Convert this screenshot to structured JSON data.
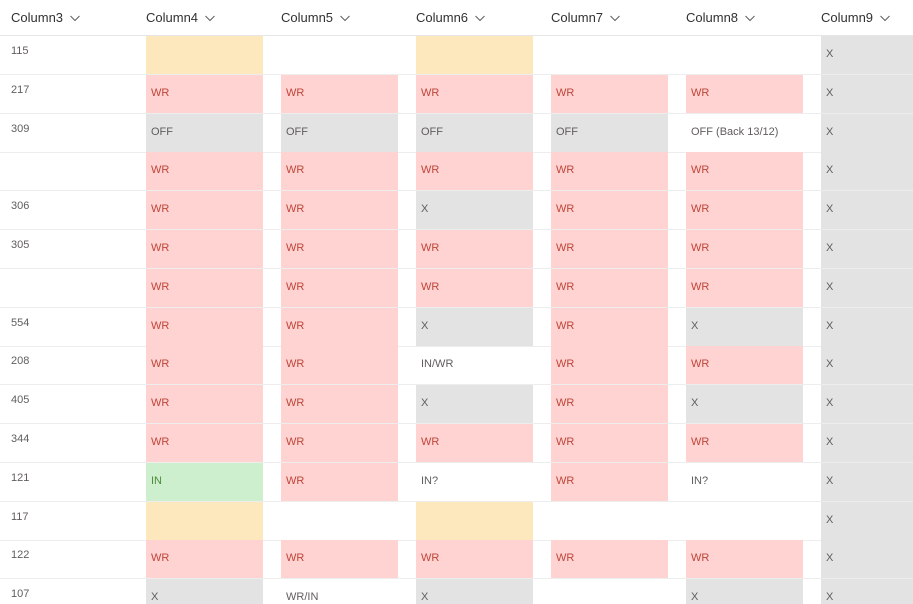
{
  "headers": [
    "Column3",
    "Column4",
    "Column5",
    "Column6",
    "Column7",
    "Column8",
    "Column9"
  ],
  "header_icon": "chevron-down-icon",
  "colors": {
    "WR": "#fed3d1",
    "OFF": "#e3e3e3",
    "X": "#e3e3e3",
    "IN": "#cdefcd",
    "YEL": "#fde7bd"
  },
  "rows": [
    {
      "c3": "115",
      "cells": [
        {
          "t": "",
          "s": "YEL"
        },
        {
          "t": "",
          "s": "plain"
        },
        {
          "t": "",
          "s": "YEL"
        },
        {
          "t": "",
          "s": "plain"
        },
        {
          "t": "",
          "s": "plain"
        },
        {
          "t": "X",
          "s": "X"
        }
      ]
    },
    {
      "c3": "217",
      "cells": [
        {
          "t": "WR",
          "s": "WR"
        },
        {
          "t": "WR",
          "s": "WR"
        },
        {
          "t": "WR",
          "s": "WR"
        },
        {
          "t": "WR",
          "s": "WR"
        },
        {
          "t": "WR",
          "s": "WR"
        },
        {
          "t": "X",
          "s": "X"
        }
      ]
    },
    {
      "c3": "309",
      "cells": [
        {
          "t": "OFF",
          "s": "OFF"
        },
        {
          "t": "OFF",
          "s": "OFF"
        },
        {
          "t": "OFF",
          "s": "OFF"
        },
        {
          "t": "OFF",
          "s": "OFF"
        },
        {
          "t": "OFF (Back 13/12)",
          "s": "plain"
        },
        {
          "t": "X",
          "s": "X"
        }
      ]
    },
    {
      "c3": "",
      "cells": [
        {
          "t": "WR",
          "s": "WR"
        },
        {
          "t": "WR",
          "s": "WR"
        },
        {
          "t": "WR",
          "s": "WR"
        },
        {
          "t": "WR",
          "s": "WR"
        },
        {
          "t": "WR",
          "s": "WR"
        },
        {
          "t": "X",
          "s": "X"
        }
      ]
    },
    {
      "c3": "306",
      "cells": [
        {
          "t": "WR",
          "s": "WR"
        },
        {
          "t": "WR",
          "s": "WR"
        },
        {
          "t": "X",
          "s": "X"
        },
        {
          "t": "WR",
          "s": "WR"
        },
        {
          "t": "WR",
          "s": "WR"
        },
        {
          "t": "X",
          "s": "X"
        }
      ]
    },
    {
      "c3": "305",
      "cells": [
        {
          "t": "WR",
          "s": "WR"
        },
        {
          "t": "WR",
          "s": "WR"
        },
        {
          "t": "WR",
          "s": "WR"
        },
        {
          "t": "WR",
          "s": "WR"
        },
        {
          "t": "WR",
          "s": "WR"
        },
        {
          "t": "X",
          "s": "X"
        }
      ]
    },
    {
      "c3": "",
      "cells": [
        {
          "t": "WR",
          "s": "WR"
        },
        {
          "t": "WR",
          "s": "WR"
        },
        {
          "t": "WR",
          "s": "WR"
        },
        {
          "t": "WR",
          "s": "WR"
        },
        {
          "t": "WR",
          "s": "WR"
        },
        {
          "t": "X",
          "s": "X"
        }
      ]
    },
    {
      "c3": "554",
      "cells": [
        {
          "t": "WR",
          "s": "WR"
        },
        {
          "t": "WR",
          "s": "WR"
        },
        {
          "t": "X",
          "s": "X"
        },
        {
          "t": "WR",
          "s": "WR"
        },
        {
          "t": "X",
          "s": "X"
        },
        {
          "t": "X",
          "s": "X"
        }
      ]
    },
    {
      "c3": "208",
      "cells": [
        {
          "t": "WR",
          "s": "WR"
        },
        {
          "t": "WR",
          "s": "WR"
        },
        {
          "t": "IN/WR",
          "s": "plain"
        },
        {
          "t": "WR",
          "s": "WR"
        },
        {
          "t": "WR",
          "s": "WR"
        },
        {
          "t": "X",
          "s": "X"
        }
      ]
    },
    {
      "c3": "405",
      "cells": [
        {
          "t": "WR",
          "s": "WR"
        },
        {
          "t": "WR",
          "s": "WR"
        },
        {
          "t": "X",
          "s": "X"
        },
        {
          "t": "WR",
          "s": "WR"
        },
        {
          "t": "X",
          "s": "X"
        },
        {
          "t": "X",
          "s": "X"
        }
      ]
    },
    {
      "c3": "344",
      "cells": [
        {
          "t": "WR",
          "s": "WR"
        },
        {
          "t": "WR",
          "s": "WR"
        },
        {
          "t": "WR",
          "s": "WR"
        },
        {
          "t": "WR",
          "s": "WR"
        },
        {
          "t": "WR",
          "s": "WR"
        },
        {
          "t": "X",
          "s": "X"
        }
      ]
    },
    {
      "c3": "121",
      "cells": [
        {
          "t": "IN",
          "s": "IN"
        },
        {
          "t": "WR",
          "s": "WR"
        },
        {
          "t": "IN?",
          "s": "plain"
        },
        {
          "t": "WR",
          "s": "WR"
        },
        {
          "t": "IN?",
          "s": "plain"
        },
        {
          "t": "X",
          "s": "X"
        }
      ]
    },
    {
      "c3": "117",
      "cells": [
        {
          "t": "",
          "s": "YEL"
        },
        {
          "t": "",
          "s": "plain"
        },
        {
          "t": "",
          "s": "YEL"
        },
        {
          "t": "",
          "s": "plain"
        },
        {
          "t": "",
          "s": "plain"
        },
        {
          "t": "X",
          "s": "X"
        }
      ]
    },
    {
      "c3": "122",
      "cells": [
        {
          "t": "WR",
          "s": "WR"
        },
        {
          "t": "WR",
          "s": "WR"
        },
        {
          "t": "WR",
          "s": "WR"
        },
        {
          "t": "WR",
          "s": "WR"
        },
        {
          "t": "WR",
          "s": "WR"
        },
        {
          "t": "X",
          "s": "X"
        }
      ]
    },
    {
      "c3": "107",
      "cells": [
        {
          "t": "X",
          "s": "X"
        },
        {
          "t": "WR/IN",
          "s": "plain"
        },
        {
          "t": "X",
          "s": "X"
        },
        {
          "t": "",
          "s": "plain"
        },
        {
          "t": "X",
          "s": "X"
        },
        {
          "t": "X",
          "s": "X"
        }
      ]
    }
  ]
}
